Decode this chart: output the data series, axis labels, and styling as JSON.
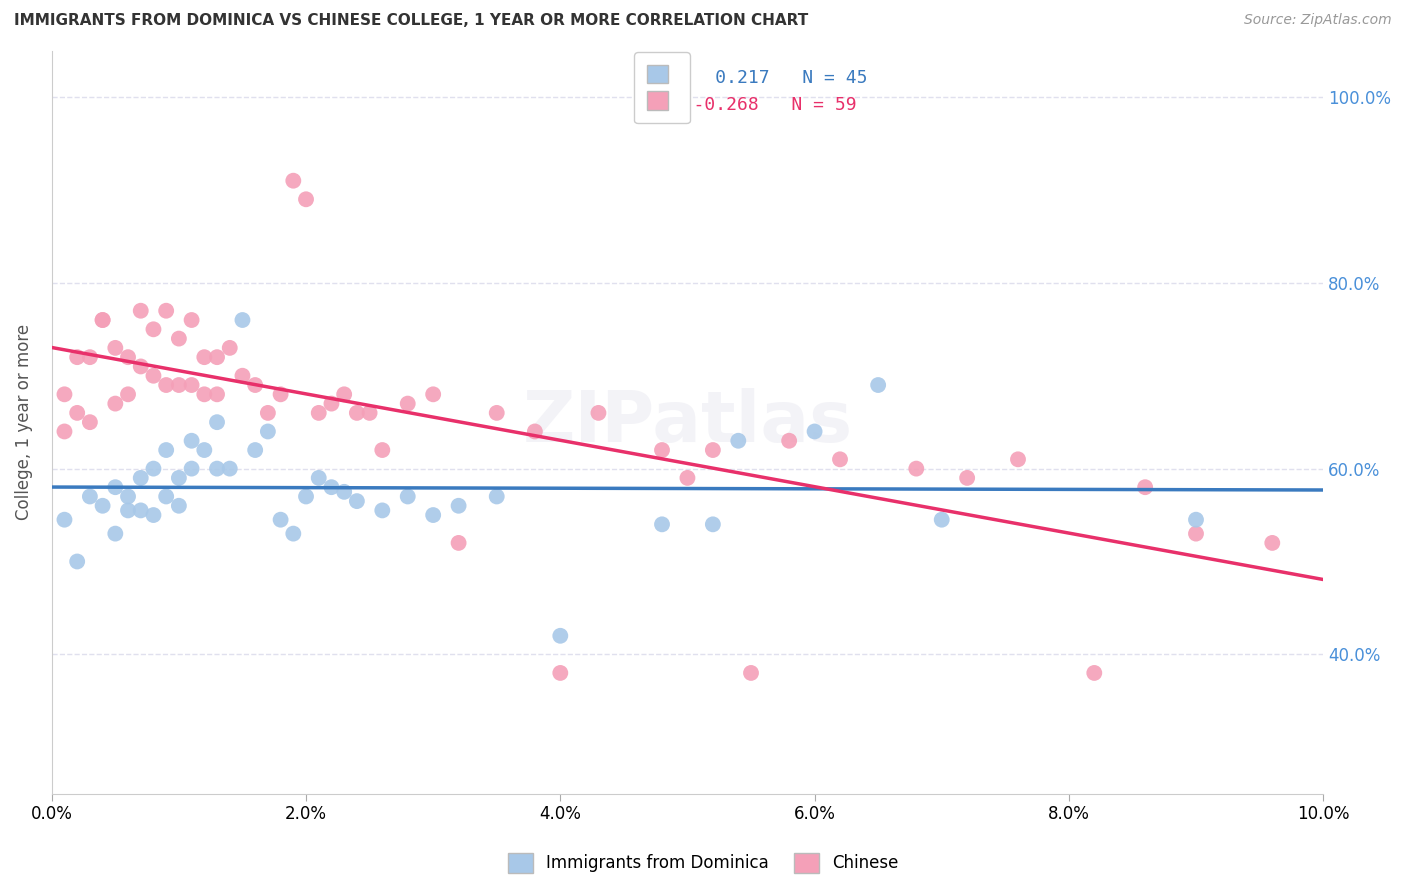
{
  "title": "IMMIGRANTS FROM DOMINICA VS CHINESE COLLEGE, 1 YEAR OR MORE CORRELATION CHART",
  "source": "Source: ZipAtlas.com",
  "ylabel": "College, 1 year or more",
  "x_min": 0.0,
  "x_max": 0.1,
  "y_min": 0.25,
  "y_max": 1.05,
  "x_ticks": [
    0.0,
    0.02,
    0.04,
    0.06,
    0.08,
    0.1
  ],
  "y_ticks": [
    0.4,
    0.6,
    0.8,
    1.0
  ],
  "blue_R": 0.217,
  "blue_N": 45,
  "pink_R": -0.268,
  "pink_N": 59,
  "blue_color": "#a8c8e8",
  "pink_color": "#f4a0b8",
  "blue_line_color": "#3a7abf",
  "pink_line_color": "#e8306a",
  "grid_color": "#e0e0ee",
  "background_color": "#ffffff",
  "blue_scatter_x": [
    0.001,
    0.002,
    0.003,
    0.004,
    0.005,
    0.005,
    0.006,
    0.006,
    0.007,
    0.007,
    0.008,
    0.008,
    0.009,
    0.009,
    0.01,
    0.01,
    0.011,
    0.011,
    0.012,
    0.013,
    0.013,
    0.014,
    0.015,
    0.016,
    0.017,
    0.018,
    0.019,
    0.02,
    0.021,
    0.022,
    0.023,
    0.024,
    0.026,
    0.028,
    0.03,
    0.032,
    0.035,
    0.04,
    0.048,
    0.052,
    0.054,
    0.06,
    0.065,
    0.07,
    0.09
  ],
  "blue_scatter_y": [
    0.545,
    0.5,
    0.57,
    0.56,
    0.53,
    0.58,
    0.555,
    0.57,
    0.555,
    0.59,
    0.55,
    0.6,
    0.57,
    0.62,
    0.59,
    0.56,
    0.63,
    0.6,
    0.62,
    0.6,
    0.65,
    0.6,
    0.76,
    0.62,
    0.64,
    0.545,
    0.53,
    0.57,
    0.59,
    0.58,
    0.575,
    0.565,
    0.555,
    0.57,
    0.55,
    0.56,
    0.57,
    0.42,
    0.54,
    0.54,
    0.63,
    0.64,
    0.69,
    0.545,
    0.545
  ],
  "pink_scatter_x": [
    0.001,
    0.001,
    0.002,
    0.002,
    0.003,
    0.003,
    0.004,
    0.004,
    0.005,
    0.005,
    0.006,
    0.006,
    0.007,
    0.007,
    0.008,
    0.008,
    0.009,
    0.009,
    0.01,
    0.01,
    0.011,
    0.011,
    0.012,
    0.012,
    0.013,
    0.013,
    0.014,
    0.015,
    0.016,
    0.017,
    0.018,
    0.019,
    0.02,
    0.021,
    0.022,
    0.023,
    0.024,
    0.025,
    0.026,
    0.028,
    0.03,
    0.032,
    0.035,
    0.038,
    0.04,
    0.043,
    0.048,
    0.05,
    0.052,
    0.055,
    0.058,
    0.062,
    0.068,
    0.072,
    0.076,
    0.082,
    0.086,
    0.09,
    0.096
  ],
  "pink_scatter_y": [
    0.64,
    0.68,
    0.72,
    0.66,
    0.65,
    0.72,
    0.76,
    0.76,
    0.67,
    0.73,
    0.72,
    0.68,
    0.71,
    0.77,
    0.7,
    0.75,
    0.69,
    0.77,
    0.69,
    0.74,
    0.69,
    0.76,
    0.72,
    0.68,
    0.72,
    0.68,
    0.73,
    0.7,
    0.69,
    0.66,
    0.68,
    0.91,
    0.89,
    0.66,
    0.67,
    0.68,
    0.66,
    0.66,
    0.62,
    0.67,
    0.68,
    0.52,
    0.66,
    0.64,
    0.38,
    0.66,
    0.62,
    0.59,
    0.62,
    0.38,
    0.63,
    0.61,
    0.6,
    0.59,
    0.61,
    0.38,
    0.58,
    0.53,
    0.52
  ]
}
